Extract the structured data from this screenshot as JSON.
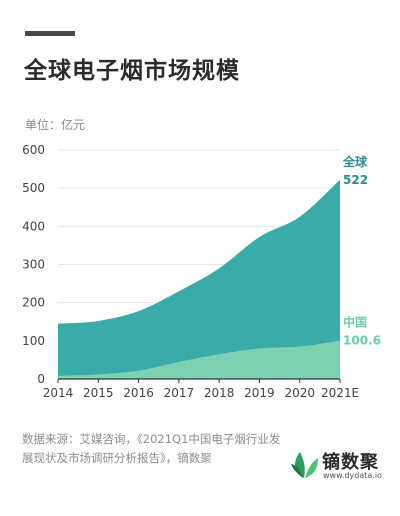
{
  "title": "全球电子烟市场规模",
  "unit": "单位：亿元",
  "source": "数据来源：艾媒咨询，《2021Q1中国电子烟行业发展现状及市场调研分析报告》，镝数聚",
  "logo": {
    "name": "镝数聚",
    "url": "www.dydata.io",
    "icon": "leaf-logo-icon"
  },
  "colors": {
    "global": "#3aaba8",
    "china": "#7dd1b1",
    "global_label": "#2e8b8b",
    "china_label": "#6ccfa6"
  },
  "chart_data": {
    "type": "area",
    "x": [
      "2014",
      "2015",
      "2016",
      "2017",
      "2018",
      "2019",
      "2020",
      "2021E"
    ],
    "ylim": [
      0,
      600
    ],
    "yticks": [
      "0",
      "100",
      "200",
      "300",
      "400",
      "500",
      "600"
    ],
    "series": [
      {
        "name": "全球",
        "values": [
          145,
          152,
          178,
          230,
          290,
          372,
          425,
          522
        ],
        "end_label": "522"
      },
      {
        "name": "中国",
        "values": [
          8,
          12,
          22,
          45,
          65,
          80,
          85,
          100.6
        ],
        "end_label": "100.6"
      }
    ]
  }
}
